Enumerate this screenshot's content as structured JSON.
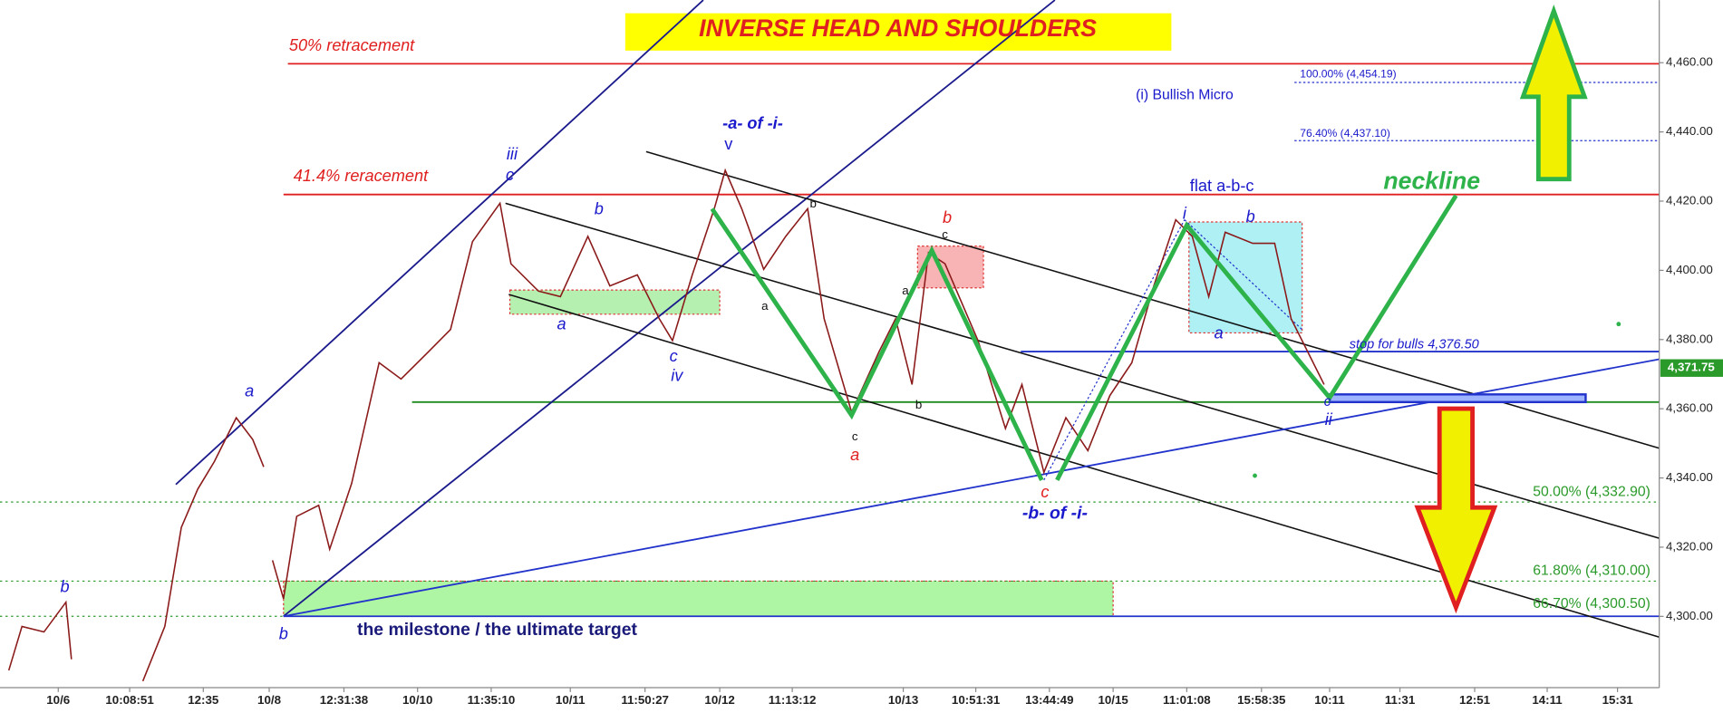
{
  "chart_data": {
    "type": "line",
    "title": "INVERSE HEAD AND SHOULDERS",
    "ylim": [
      4279.4,
      4478.1
    ],
    "yticks": [
      {
        "value": 4300,
        "label": "4,300.00"
      },
      {
        "value": 4320,
        "label": "4,320.00"
      },
      {
        "value": 4340,
        "label": "4,340.00"
      },
      {
        "value": 4360,
        "label": "4,360.00"
      },
      {
        "value": 4380,
        "label": "4,380.00"
      },
      {
        "value": 4400,
        "label": "4,400.00"
      },
      {
        "value": 4420,
        "label": "4,420.00"
      },
      {
        "value": 4440,
        "label": "4,440.00"
      },
      {
        "value": 4460,
        "label": "4,460.00"
      }
    ],
    "xlim": [
      0,
      1510
    ],
    "xticks": [
      {
        "value": 53,
        "label": "10/6"
      },
      {
        "value": 118,
        "label": "10:08:51"
      },
      {
        "value": 185,
        "label": "12:35"
      },
      {
        "value": 245,
        "label": "10/8"
      },
      {
        "value": 313,
        "label": "12:31:38"
      },
      {
        "value": 380,
        "label": "10/10"
      },
      {
        "value": 447,
        "label": "11:35:10"
      },
      {
        "value": 519,
        "label": "10/11"
      },
      {
        "value": 587,
        "label": "11:50:27"
      },
      {
        "value": 655,
        "label": "10/12"
      },
      {
        "value": 721,
        "label": "11:13:12"
      },
      {
        "value": 822,
        "label": "10/13"
      },
      {
        "value": 888,
        "label": "10:51:31"
      },
      {
        "value": 955,
        "label": "13:44:49"
      },
      {
        "value": 1013,
        "label": "10/15"
      },
      {
        "value": 1080,
        "label": "11:01:08"
      },
      {
        "value": 1148,
        "label": "15:58:35"
      },
      {
        "value": 1210,
        "label": "10:11"
      },
      {
        "value": 1274,
        "label": "11:31"
      },
      {
        "value": 1342,
        "label": "12:51"
      },
      {
        "value": 1408,
        "label": "14:11"
      },
      {
        "value": 1472,
        "label": "15:31"
      }
    ],
    "series": [
      {
        "color": "#8b1a1a",
        "x": [
          8,
          20,
          40,
          60,
          65,
          100,
          130,
          150,
          165,
          180,
          195,
          215,
          230,
          240,
          244,
          248,
          258,
          270,
          290,
          300,
          320,
          345,
          365,
          390,
          410,
          430,
          455,
          465,
          490,
          510,
          535,
          555,
          580,
          600,
          612,
          630,
          650,
          660,
          675,
          695,
          715,
          735,
          750,
          775,
          800,
          815,
          830,
          845,
          860,
          890,
          915,
          930,
          950,
          970,
          990,
          1010,
          1030,
          1050,
          1070,
          1085,
          1100,
          1115,
          1140,
          1160,
          1175,
          1190,
          1205
        ],
        "values": [
          4284.4,
          4297.1,
          4295.5,
          4304.1,
          4287.6,
          null,
          4281.3,
          4297.1,
          4325.7,
          4336.8,
          4344.7,
          4357.4,
          4351.1,
          4343.2,
          null,
          4316.2,
          4305.1,
          4328.9,
          4332.1,
          4319.4,
          4338.4,
          4373.3,
          4368.6,
          4376.5,
          4382.9,
          4408.3,
          4419.4,
          4401.9,
          4394.0,
          4392.4,
          4409.8,
          4395.5,
          4398.7,
          4386.0,
          4379.7,
          4398.7,
          4417.8,
          4428.9,
          4417.8,
          4400.3,
          4409.8,
          4417.8,
          4386.0,
          4359.0,
          4376.5,
          4386.0,
          4367.0,
          4405.1,
          4401.9,
          4379.7,
          4354.3,
          4367.0,
          4341.6,
          4357.4,
          4347.9,
          4363.8,
          4373.3,
          4395.5,
          4414.6,
          4409.8,
          4392.4,
          4411.0,
          4407.8,
          4407.8,
          4386.0,
          4376.5,
          4367.0
        ]
      }
    ],
    "last_price_label": "4,371.75",
    "annotations": [
      "50% retracement",
      "41.4% reracement",
      "(i) Bullish Micro",
      "100.00% (4,454.19)",
      "76.40% (4,437.10)",
      "neckline",
      "flat a-b-c",
      "stop for bulls 4,376.50",
      "50.00% (4,332.90)",
      "61.80% (4,310.00)",
      "66.70% (4,300.50)",
      "the milestone / the ultimate target",
      "-b- of -i-",
      "-a- of -i-",
      "v",
      "iii",
      "c",
      "a",
      "b",
      "b",
      "b",
      "a",
      "c",
      "iv",
      "b",
      "a",
      "c",
      "a",
      "b",
      "c",
      "a",
      "b",
      "c",
      "i",
      "b",
      "a",
      "c",
      "ii"
    ]
  }
}
